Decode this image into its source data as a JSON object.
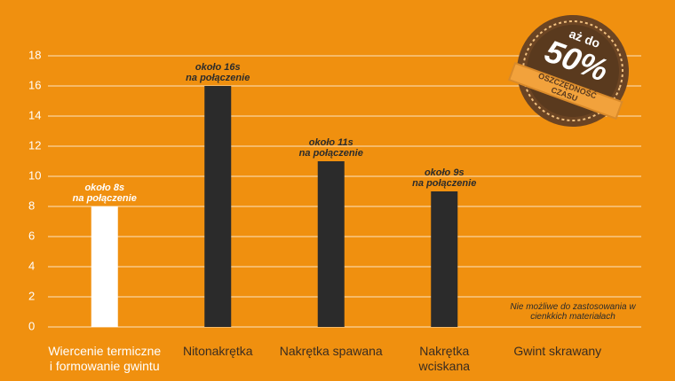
{
  "chart_data": {
    "type": "bar",
    "categories": [
      "Wiercenie termiczne\ni formowanie gwintu",
      "Nitonakrętka",
      "Nakrętka spawana",
      "Nakrętka\nwciskana",
      "Gwint skrawany"
    ],
    "values": [
      8,
      16,
      11,
      9,
      null
    ],
    "value_labels": [
      "około 8s\nna połączenie",
      "około 16s\nna połączenie",
      "około 11s\nna połączenie",
      "około 9s\nna połączenie",
      null
    ],
    "colors": [
      "#ffffff",
      "#2b2b2b",
      "#2b2b2b",
      "#2b2b2b",
      "#2b2b2b"
    ],
    "ylim": [
      0,
      18
    ],
    "yticks": [
      0,
      2,
      4,
      6,
      8,
      10,
      12,
      14,
      16,
      18
    ],
    "grid": true,
    "annotation": "Nie możliwe do zastosowania w\ncienkkich materiałach"
  },
  "badge": {
    "top": "aż do",
    "value": "50%",
    "ribbon": "OSZCZĘDNOŚĆ\nCZASU"
  }
}
